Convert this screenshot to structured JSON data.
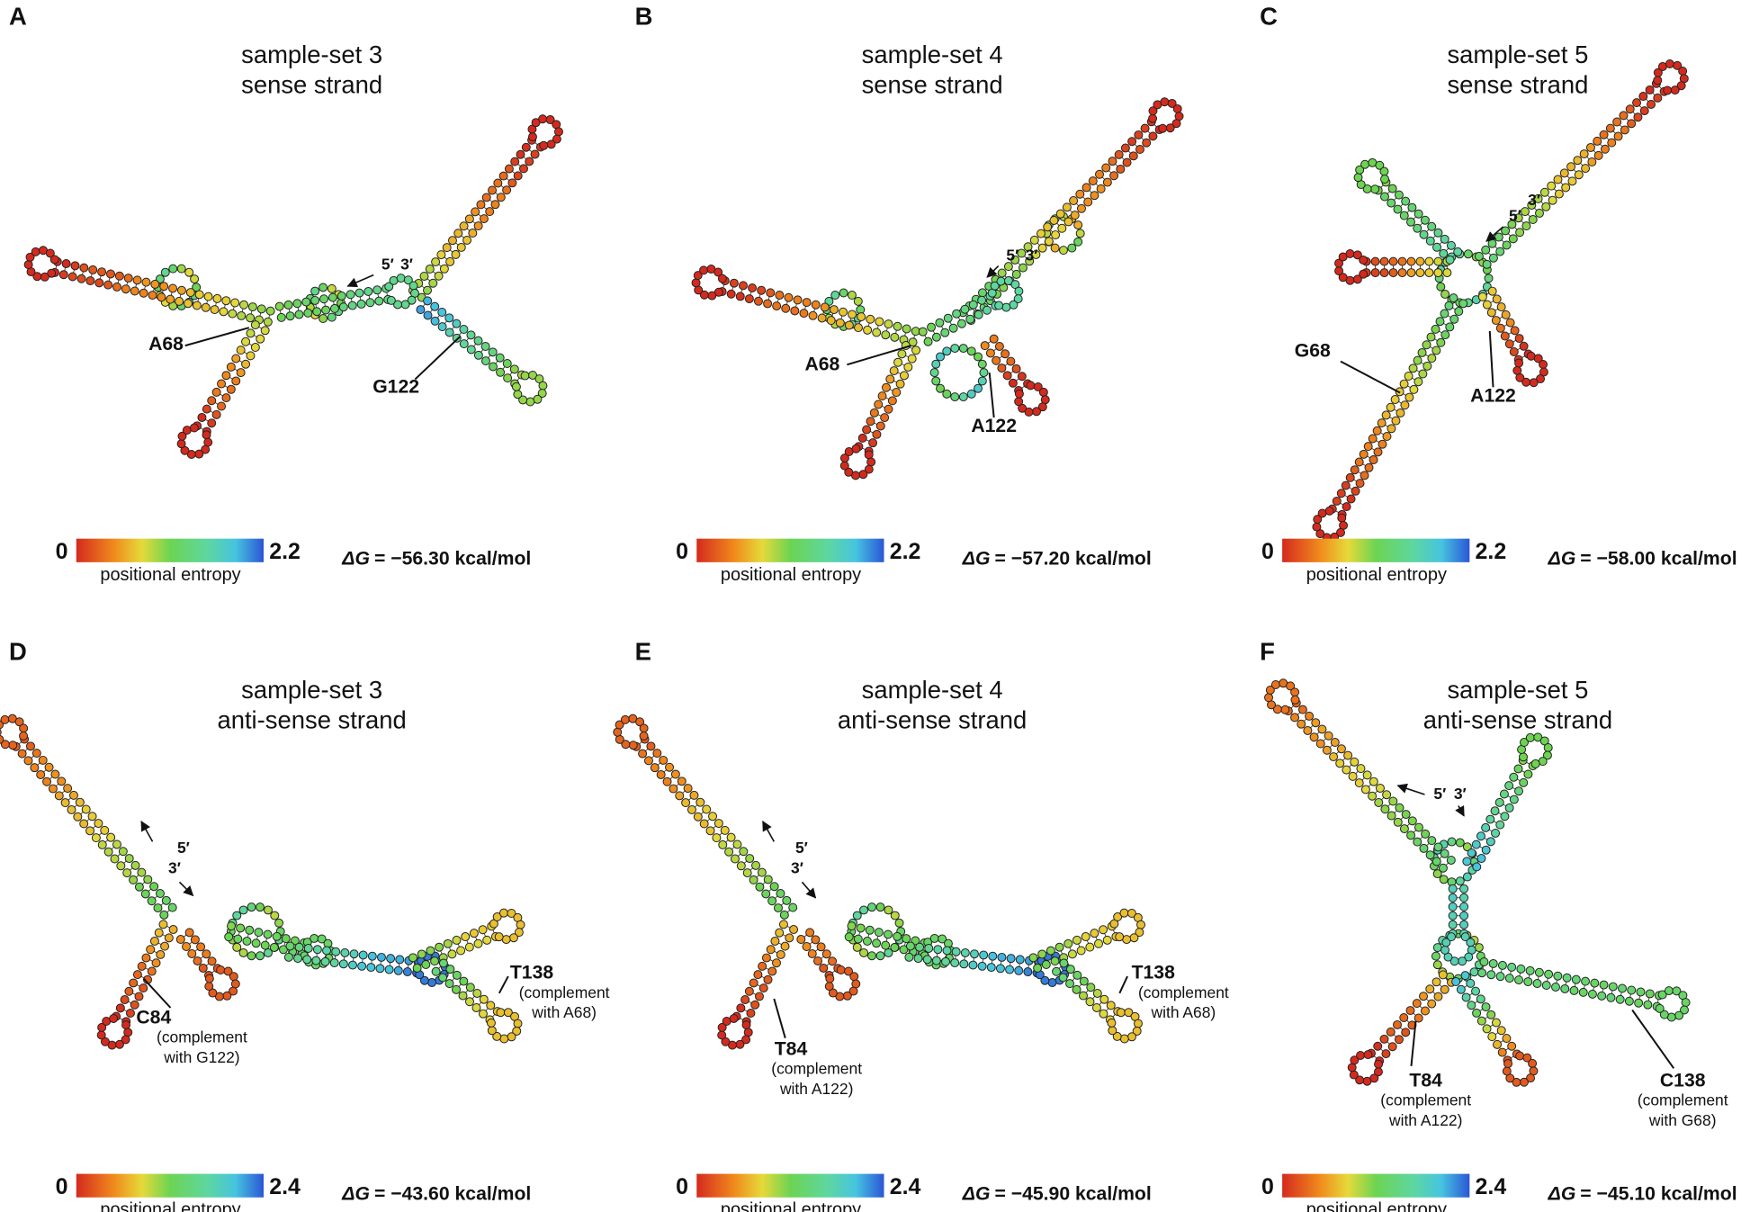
{
  "panels": [
    {
      "letter": "A",
      "title": "sample-set 3",
      "subtitle": "sense strand",
      "colorbar": {
        "min": 0,
        "max": 2.2,
        "label": "positional entropy"
      },
      "dg": {
        "symbol": "ΔG",
        "value": "= −56.30 kcal/mol"
      },
      "ends": [
        "5′",
        "3′"
      ],
      "annotations": [
        {
          "name": "A68",
          "lines": []
        },
        {
          "name": "G122",
          "lines": []
        }
      ]
    },
    {
      "letter": "B",
      "title": "sample-set 4",
      "subtitle": "sense strand",
      "colorbar": {
        "min": 0,
        "max": 2.2,
        "label": "positional entropy"
      },
      "dg": {
        "symbol": "ΔG",
        "value": "= −57.20 kcal/mol"
      },
      "ends": [
        "5′",
        "3′"
      ],
      "annotations": [
        {
          "name": "A68",
          "lines": []
        },
        {
          "name": "A122",
          "lines": []
        }
      ]
    },
    {
      "letter": "C",
      "title": "sample-set 5",
      "subtitle": "sense strand",
      "colorbar": {
        "min": 0,
        "max": 2.2,
        "label": "positional entropy"
      },
      "dg": {
        "symbol": "ΔG",
        "value": "= −58.00 kcal/mol"
      },
      "ends": [
        "5′",
        "3′"
      ],
      "annotations": [
        {
          "name": "G68",
          "lines": []
        },
        {
          "name": "A122",
          "lines": []
        }
      ]
    },
    {
      "letter": "D",
      "title": "sample-set 3",
      "subtitle": "anti-sense strand",
      "colorbar": {
        "min": 0,
        "max": 2.4,
        "label": "positional entropy"
      },
      "dg": {
        "symbol": "ΔG",
        "value": "= −43.60 kcal/mol"
      },
      "ends": [
        "5′",
        "3′"
      ],
      "annotations": [
        {
          "name": "C84",
          "lines": [
            "(complement",
            "with G122)"
          ]
        },
        {
          "name": "T138",
          "lines": [
            "(complement",
            "with A68)"
          ]
        }
      ]
    },
    {
      "letter": "E",
      "title": "sample-set 4",
      "subtitle": "anti-sense strand",
      "colorbar": {
        "min": 0,
        "max": 2.4,
        "label": "positional entropy"
      },
      "dg": {
        "symbol": "ΔG",
        "value": "= −45.90 kcal/mol"
      },
      "ends": [
        "5′",
        "3′"
      ],
      "annotations": [
        {
          "name": "T84",
          "lines": [
            "(complement",
            "with A122)"
          ]
        },
        {
          "name": "T138",
          "lines": [
            "(complement",
            "with A68)"
          ]
        }
      ]
    },
    {
      "letter": "F",
      "title": "sample-set 5",
      "subtitle": "anti-sense strand",
      "colorbar": {
        "min": 0,
        "max": 2.4,
        "label": "positional entropy"
      },
      "dg": {
        "symbol": "ΔG",
        "value": "= −45.10 kcal/mol"
      },
      "ends": [
        "5′",
        "3′"
      ],
      "annotations": [
        {
          "name": "T84",
          "lines": [
            "(complement",
            "with A122)"
          ]
        },
        {
          "name": "C138",
          "lines": [
            "(complement",
            "with G68)"
          ]
        }
      ]
    }
  ]
}
